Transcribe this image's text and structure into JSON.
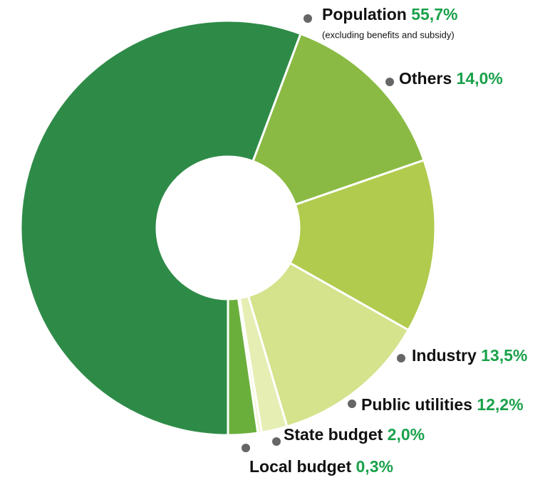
{
  "chart_data": {
    "type": "pie",
    "donut": true,
    "categories": [
      "Population",
      "Others",
      "Industry",
      "Public utilities",
      "State budget",
      "Local budget",
      null
    ],
    "values": [
      55.7,
      14.0,
      13.5,
      12.2,
      2.0,
      0.3,
      2.3
    ],
    "value_labels": [
      "55,7%",
      "14,0%",
      "13,5%",
      "12,2%",
      "2,0%",
      "0,3%",
      null
    ],
    "colors": [
      "#2e8b47",
      "#8aba43",
      "#b0cb4e",
      "#d4e38c",
      "#e6eeb4",
      "#f2f5d2",
      "#6aaf3c"
    ],
    "annotations": [
      {
        "category": 0,
        "text": "(excluding benefits and subsidy)"
      }
    ]
  }
}
